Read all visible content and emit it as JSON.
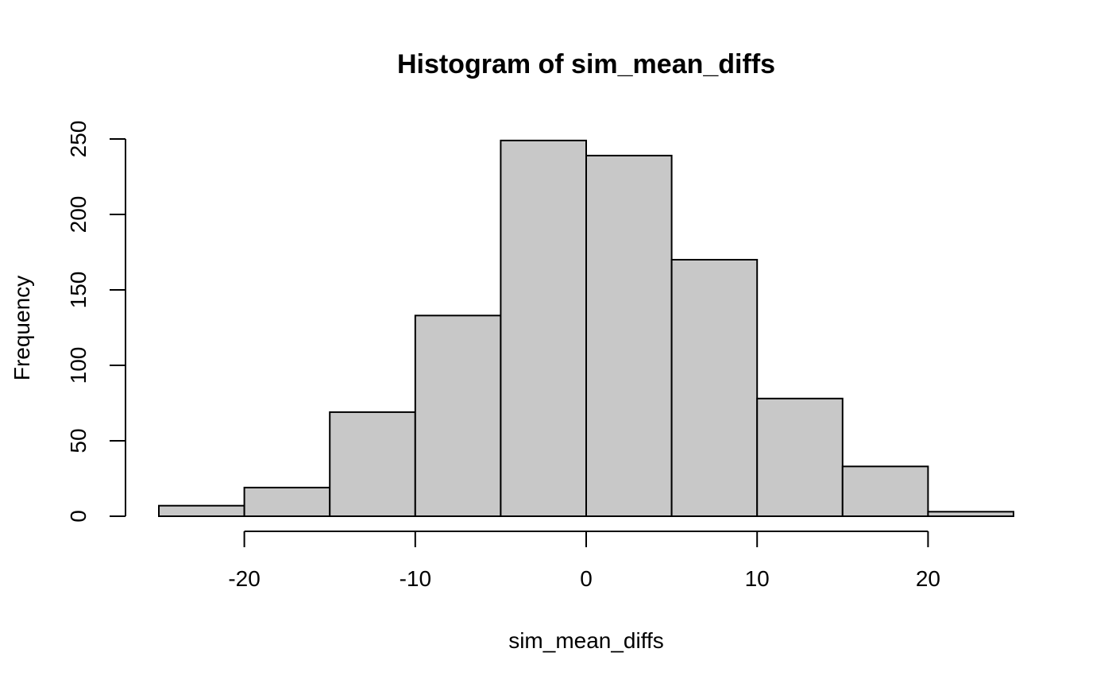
{
  "chart_data": {
    "type": "bar",
    "title": "Histogram of sim_mean_diffs",
    "xlabel": "sim_mean_diffs",
    "ylabel": "Frequency",
    "bins": [
      {
        "start": -25,
        "end": -20,
        "count": 7
      },
      {
        "start": -20,
        "end": -15,
        "count": 19
      },
      {
        "start": -15,
        "end": -10,
        "count": 69
      },
      {
        "start": -10,
        "end": -5,
        "count": 133
      },
      {
        "start": -5,
        "end": 0,
        "count": 249
      },
      {
        "start": 0,
        "end": 5,
        "count": 239
      },
      {
        "start": 5,
        "end": 10,
        "count": 170
      },
      {
        "start": 10,
        "end": 15,
        "count": 78
      },
      {
        "start": 15,
        "end": 20,
        "count": 33
      },
      {
        "start": 20,
        "end": 25,
        "count": 3
      }
    ],
    "xlim": [
      -25,
      25
    ],
    "ylim": [
      0,
      250
    ],
    "x_ticks": [
      -20,
      -10,
      0,
      10,
      20
    ],
    "y_ticks": [
      0,
      50,
      100,
      150,
      200,
      250
    ],
    "x_tick_labels": [
      "-20",
      "-10",
      "0",
      "10",
      "20"
    ],
    "y_tick_labels": [
      "0",
      "50",
      "100",
      "150",
      "200",
      "250"
    ],
    "bar_color": "#c8c8c8",
    "grid": false,
    "legend": "none"
  }
}
